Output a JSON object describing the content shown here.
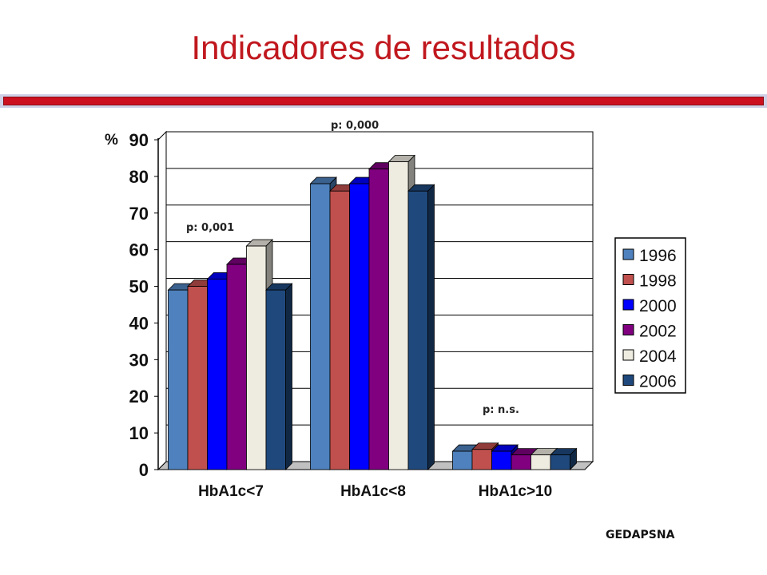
{
  "slide": {
    "title": "Indicadores de resultados",
    "footer": "GEDAPSNA"
  },
  "chart_data": {
    "type": "bar",
    "ylabel": "%",
    "ylim": [
      0,
      90
    ],
    "yticks": [
      0,
      10,
      20,
      30,
      40,
      50,
      60,
      70,
      80,
      90
    ],
    "categories": [
      "HbA1c<7",
      "HbA1c<8",
      "HbA1c>10"
    ],
    "legend_position": "right",
    "grid": true,
    "series": [
      {
        "name": "1996",
        "color": "#4e81bd",
        "values": [
          49,
          78,
          5
        ]
      },
      {
        "name": "1998",
        "color": "#c0504d",
        "values": [
          50,
          76,
          5.5
        ]
      },
      {
        "name": "2000",
        "color": "#0000ff",
        "values": [
          52,
          78,
          5
        ]
      },
      {
        "name": "2002",
        "color": "#800080",
        "values": [
          56,
          82,
          4
        ]
      },
      {
        "name": "2004",
        "color": "#eeece1",
        "values": [
          61,
          84,
          4
        ]
      },
      {
        "name": "2006",
        "color": "#1f497d",
        "values": [
          49,
          76,
          4
        ]
      }
    ],
    "annotations": [
      "p: 0,001",
      "p: 0,000",
      "p: n.s."
    ]
  }
}
